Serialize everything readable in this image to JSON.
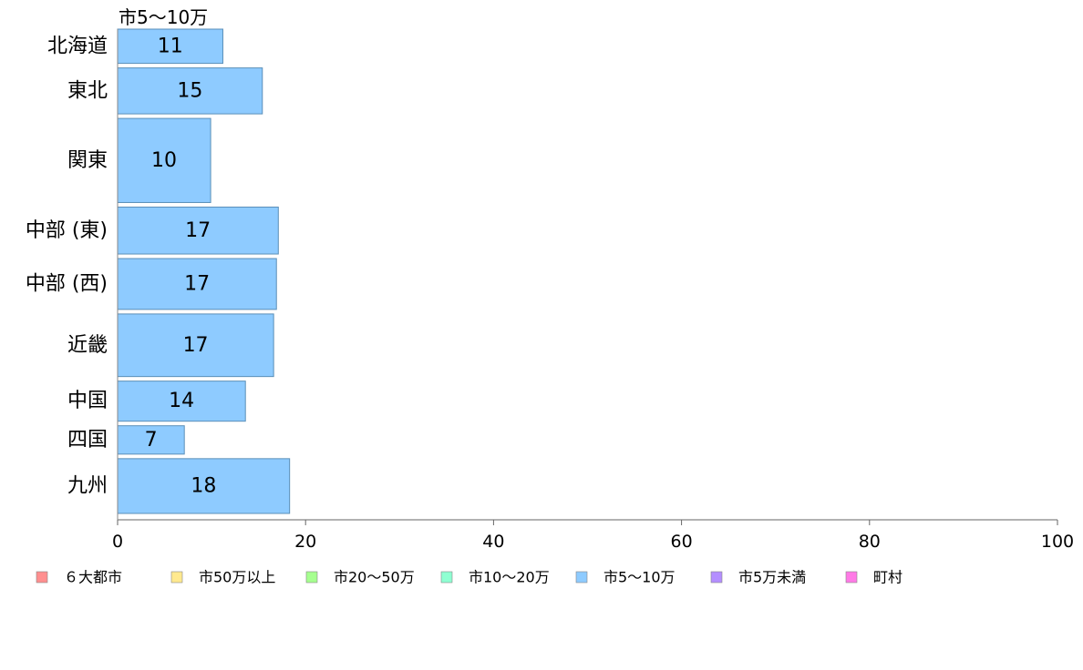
{
  "chart_data": {
    "type": "bar",
    "orientation": "horizontal",
    "title": "市5〜10万",
    "categories": [
      "北海道",
      "東北",
      "関東",
      "中部 (東)",
      "中部 (西)",
      "近畿",
      "中国",
      "四国",
      "九州"
    ],
    "series": [
      {
        "name": "市5〜10万",
        "color": "#8ecbff",
        "values": [
          11.2,
          15.4,
          9.9,
          17.1,
          16.9,
          16.6,
          13.6,
          7.1,
          18.3
        ],
        "labels": [
          "11",
          "15",
          "10",
          "17",
          "17",
          "17",
          "14",
          "7",
          "18"
        ]
      }
    ],
    "bar_weights": [
      0.35,
      0.47,
      0.86,
      0.48,
      0.52,
      0.64,
      0.41,
      0.29,
      0.56
    ],
    "xlim": [
      0,
      100
    ],
    "xticks": [
      0,
      20,
      40,
      60,
      80,
      100
    ],
    "grid": false,
    "legend_position": "bottom",
    "legend": [
      {
        "label": "６大都市",
        "color": "#ff8f8f"
      },
      {
        "label": "市50万以上",
        "color": "#ffe98f"
      },
      {
        "label": "市20〜50万",
        "color": "#a6ff8f"
      },
      {
        "label": "市10〜20万",
        "color": "#8fffd2"
      },
      {
        "label": "市5〜10万",
        "color": "#8ecbff"
      },
      {
        "label": "市5万未満",
        "color": "#b48fff"
      },
      {
        "label": "町村",
        "color": "#ff7ae6"
      }
    ]
  }
}
